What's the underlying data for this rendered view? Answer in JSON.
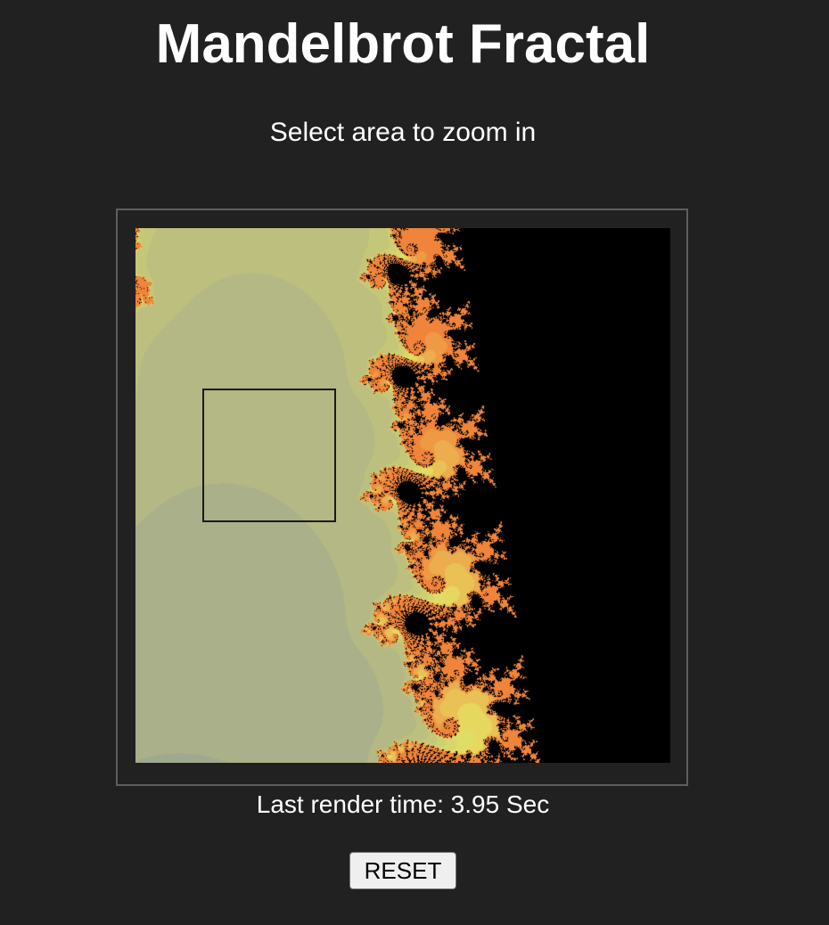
{
  "header": {
    "title": "Mandelbrot Fractal",
    "subtitle": "Select area to zoom in"
  },
  "status": {
    "render_time_label": "Last render time:",
    "render_time_value": "3.95",
    "render_time_unit": "Sec"
  },
  "controls": {
    "reset_label": "RESET"
  },
  "colors": {
    "background": "#212121",
    "fractal_inside": "#000000",
    "palette_far": "#6577b5",
    "palette_mid": "#a3ab8e",
    "palette_near": "#e5e164",
    "palette_edge": "#f0843a"
  }
}
